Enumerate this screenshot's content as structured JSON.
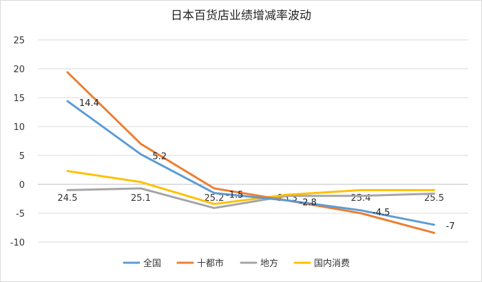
{
  "chart_data": {
    "type": "line",
    "title": "日本百货店业绩增减率波动",
    "xlabel": "",
    "ylabel": "",
    "categories": [
      "24.5",
      "25.1",
      "25.2",
      "25.3",
      "25.4",
      "25.5"
    ],
    "ylim": [
      -10,
      25
    ],
    "yticks": [
      "25",
      "20",
      "15",
      "10",
      "5",
      "0",
      "-5",
      "-10"
    ],
    "grid": true,
    "legend_position": "bottom",
    "series": [
      {
        "name": "全国",
        "color": "#5b9bd5",
        "values": [
          14.4,
          5.2,
          -1.5,
          -2.8,
          -4.5,
          -7
        ],
        "labels": [
          "14.4",
          "5.2",
          "-1.5",
          "-2.8",
          "-4.5",
          "-7"
        ]
      },
      {
        "name": "十都市",
        "color": "#ed7d31",
        "values": [
          19.4,
          7.0,
          -0.7,
          -2.8,
          -5.0,
          -8.4
        ]
      },
      {
        "name": "地方",
        "color": "#a5a5a5",
        "values": [
          -1.0,
          -0.7,
          -4.1,
          -2.0,
          -2.0,
          -1.6
        ]
      },
      {
        "name": "国内消费",
        "color": "#ffc000",
        "values": [
          2.3,
          0.4,
          -3.4,
          -1.8,
          -1.0,
          -1.0
        ]
      }
    ]
  }
}
